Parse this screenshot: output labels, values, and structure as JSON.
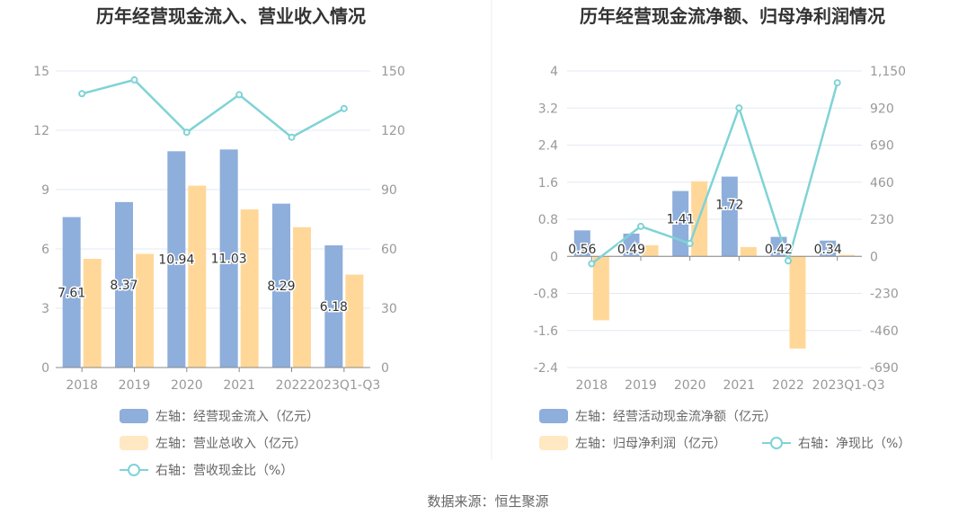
{
  "source": "数据来源：恒生聚源",
  "colors": {
    "blue": "#8eaedb",
    "orange": "#ffd899",
    "line": "#7fd3d6",
    "grid": "#e3e8f3",
    "axis": "#888"
  },
  "chart_data": [
    {
      "type": "bar",
      "title": "历年经营现金流入、营业收入情况",
      "categories": [
        "2018",
        "2019",
        "2020",
        "2021",
        "2022",
        "2023Q1-Q3"
      ],
      "y_left": {
        "min": 0,
        "max": 15,
        "ticks": [
          "0",
          "3",
          "6",
          "9",
          "12",
          "15"
        ]
      },
      "y_right": {
        "min": 0,
        "max": 150,
        "ticks": [
          "0",
          "30",
          "60",
          "90",
          "120",
          "150"
        ]
      },
      "series": [
        {
          "name": "左轴：经营现金流入（亿元）",
          "type": "bar",
          "axis": "left",
          "color": "#8eaedb",
          "values": [
            7.61,
            8.37,
            10.94,
            11.03,
            8.29,
            6.18
          ],
          "labels": [
            "7.61",
            "8.37",
            "10.94",
            "11.03",
            "8.29",
            "6.18"
          ]
        },
        {
          "name": "左轴：营业总收入（亿元）",
          "type": "bar",
          "axis": "left",
          "color": "#ffd899",
          "values": [
            5.5,
            5.75,
            9.2,
            8.0,
            7.1,
            4.7
          ]
        },
        {
          "name": "右轴：营收现金比（%）",
          "type": "line",
          "axis": "right",
          "color": "#7fd3d6",
          "values": [
            138.5,
            145.5,
            119,
            138,
            116.5,
            131
          ]
        }
      ]
    },
    {
      "type": "bar",
      "title": "历年经营现金流净额、归母净利润情况",
      "categories": [
        "2018",
        "2019",
        "2020",
        "2021",
        "2022",
        "2023Q1-Q3"
      ],
      "y_left": {
        "min": -2.4,
        "max": 4,
        "ticks": [
          "-2.4",
          "-1.6",
          "-0.8",
          "0",
          "0.8",
          "1.6",
          "2.4",
          "3.2",
          "4"
        ]
      },
      "y_right": {
        "min": -690,
        "max": 1150,
        "ticks": [
          "-690",
          "-460",
          "-230",
          "0",
          "230",
          "460",
          "690",
          "920",
          "1,150"
        ]
      },
      "series": [
        {
          "name": "左轴：经营活动现金流净额（亿元）",
          "type": "bar",
          "axis": "left",
          "color": "#8eaedb",
          "values": [
            0.56,
            0.49,
            1.41,
            1.72,
            0.42,
            0.34
          ],
          "labels": [
            "0.56",
            "0.49",
            "1.41",
            "1.72",
            "0.42",
            "0.34"
          ]
        },
        {
          "name": "左轴：归母净利润（亿元）",
          "type": "bar",
          "axis": "left",
          "color": "#ffd899",
          "values": [
            -1.38,
            0.24,
            1.62,
            0.2,
            -1.99,
            0.03
          ]
        },
        {
          "name": "右轴：净现比（%）",
          "type": "line",
          "axis": "right",
          "color": "#7fd3d6",
          "values": [
            -46,
            186,
            80,
            921,
            -28,
            1077
          ]
        }
      ]
    }
  ]
}
